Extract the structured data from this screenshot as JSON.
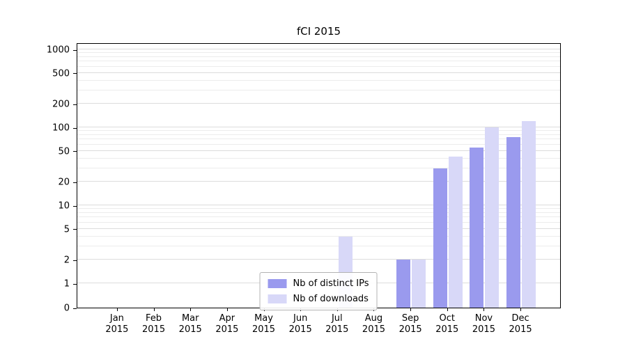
{
  "chart_data": {
    "type": "bar",
    "title": "fCI 2015",
    "categories": [
      "Jan 2015",
      "Feb 2015",
      "Mar 2015",
      "Apr 2015",
      "May 2015",
      "Jun 2015",
      "Jul 2015",
      "Aug 2015",
      "Sep 2015",
      "Oct 2015",
      "Nov 2015",
      "Dec 2015"
    ],
    "series": [
      {
        "name": "Nb of distinct IPs",
        "color": "#9a9aee",
        "values": [
          0,
          0,
          0,
          0,
          0,
          0,
          0,
          0,
          2,
          30,
          55,
          75
        ]
      },
      {
        "name": "Nb of downloads",
        "color": "#d8d8f8",
        "values": [
          0,
          0,
          0,
          0,
          0,
          0,
          4,
          0,
          2,
          42,
          100,
          120
        ]
      }
    ],
    "yscale": "symlog",
    "yticks": [
      0,
      1,
      2,
      5,
      10,
      20,
      50,
      100,
      200,
      500,
      1000
    ],
    "ylim": [
      0,
      1300
    ],
    "grid": true,
    "legend_position": "lower center"
  },
  "colors": {
    "grid_major": "#dcdcdc",
    "grid_minor": "#ececec",
    "axis": "#000000",
    "legend_border": "#b3b3b3"
  }
}
